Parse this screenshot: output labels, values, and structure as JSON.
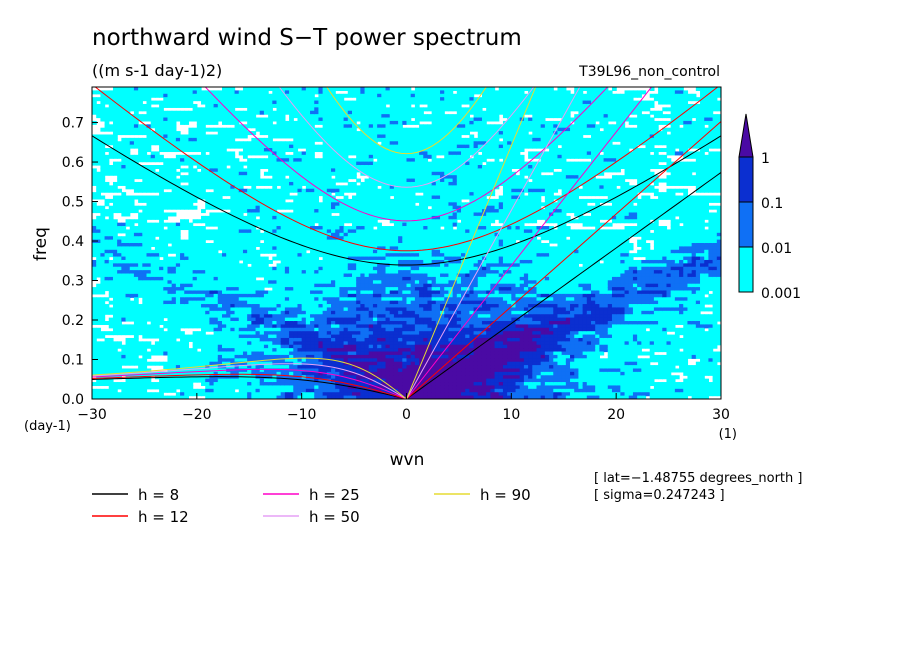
{
  "chart_data": {
    "type": "heatmap",
    "title": "northward wind S−T power spectrum",
    "units": "((m s-1 day-1)2)",
    "experiment": "T39L96_non_control",
    "xlabel": "wvn",
    "ylabel": "freq",
    "x_unit": "(1)",
    "y_unit": "(day-1)",
    "xlim": [
      -30,
      30
    ],
    "ylim": [
      0,
      0.79
    ],
    "x_ticks": [
      {
        "v": -30,
        "label": "−30"
      },
      {
        "v": -20,
        "label": "−20"
      },
      {
        "v": -10,
        "label": "−10"
      },
      {
        "v": 0,
        "label": "0"
      },
      {
        "v": 10,
        "label": "10"
      },
      {
        "v": 20,
        "label": "20"
      },
      {
        "v": 30,
        "label": "30"
      }
    ],
    "y_ticks": [
      {
        "v": 0,
        "label": "0.0"
      },
      {
        "v": 0.1,
        "label": "0.1"
      },
      {
        "v": 0.2,
        "label": "0.2"
      },
      {
        "v": 0.3,
        "label": "0.3"
      },
      {
        "v": 0.4,
        "label": "0.4"
      },
      {
        "v": 0.5,
        "label": "0.5"
      },
      {
        "v": 0.6,
        "label": "0.6"
      },
      {
        "v": 0.7,
        "label": "0.7"
      }
    ],
    "contour_levels": [
      0.001,
      0.01,
      0.1,
      1
    ],
    "colorbar": [
      {
        "label": "0.001",
        "color": "#00ffff"
      },
      {
        "label": "0.01",
        "color": "#0f70f5"
      },
      {
        "label": "0.1",
        "color": "#0b2fd0"
      },
      {
        "label": "1",
        "color": "#4a0aa4"
      }
    ],
    "dispersion_curves": [
      {
        "name": "h =  8",
        "h": 8,
        "color": "#000000"
      },
      {
        "name": "h = 12",
        "h": 12,
        "color": "#ff0000"
      },
      {
        "name": "h = 25",
        "h": 25,
        "color": "#ff00c8"
      },
      {
        "name": "h = 50",
        "h": 50,
        "color": "#e6a0f5"
      },
      {
        "name": "h = 90",
        "h": 90,
        "color": "#e6dc32"
      }
    ],
    "info": [
      "[ lat=−1.48755 degrees_north ]",
      "[ sigma=0.247243 ]"
    ]
  }
}
